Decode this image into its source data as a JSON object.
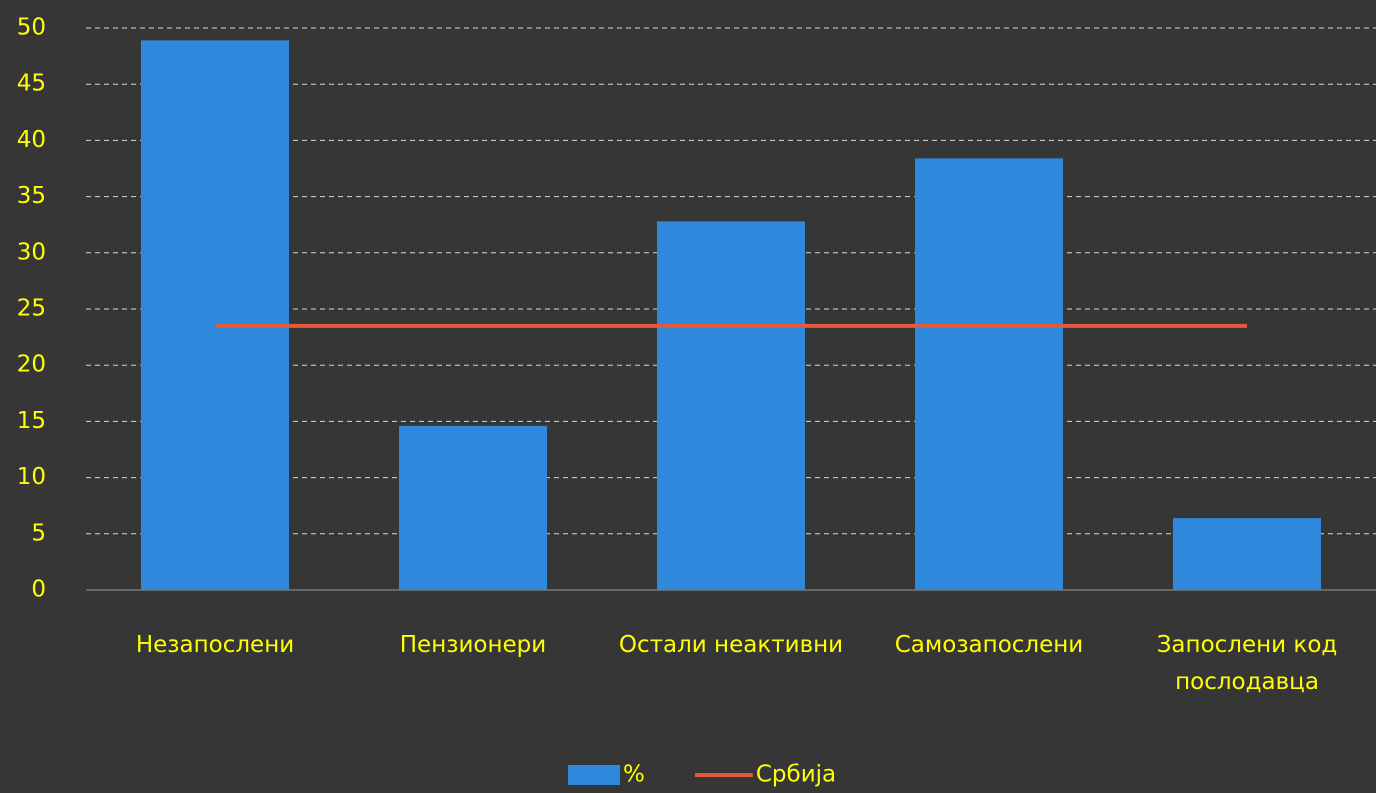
{
  "chart_data": {
    "type": "bar",
    "categories": [
      "Незапослени",
      "Пензионери",
      "Остали неактивни",
      "Самозапослени",
      "Запослени код послодавца"
    ],
    "series": [
      {
        "name": "%",
        "type": "bar",
        "color": "#2e88db",
        "values": [
          48.9,
          14.6,
          32.8,
          38.4,
          6.4
        ]
      },
      {
        "name": "Србија",
        "type": "line",
        "color": "#e4583c",
        "values": [
          23.5,
          23.5,
          23.5,
          23.5,
          23.5
        ]
      }
    ],
    "ylim": [
      0,
      50
    ],
    "yticks": [
      0,
      5,
      10,
      15,
      20,
      25,
      30,
      35,
      40,
      45,
      50
    ],
    "grid": true,
    "legend": "bottom"
  }
}
